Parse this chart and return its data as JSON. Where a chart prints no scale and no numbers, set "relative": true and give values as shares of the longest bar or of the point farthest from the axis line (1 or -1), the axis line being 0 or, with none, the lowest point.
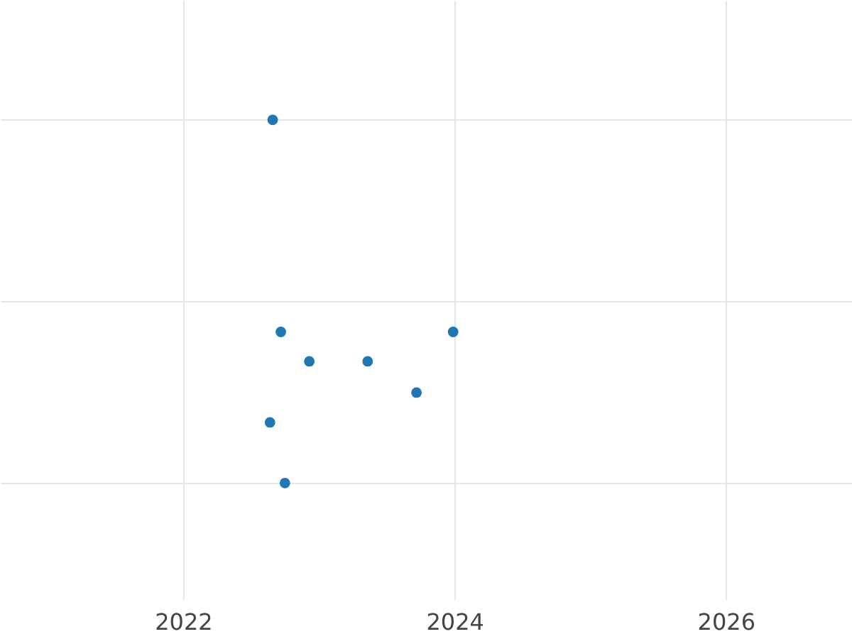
{
  "chart_data": {
    "type": "scatter",
    "relative": true,
    "color": "#1f77b4",
    "marker": "circle",
    "grid": true,
    "x": [
      2022.66,
      2022.72,
      2022.93,
      2023.36,
      2023.99,
      2023.72,
      2022.64,
      2022.75
    ],
    "values": [
      1,
      0.416,
      0.335,
      0.335,
      0.416,
      0.249,
      0.167,
      0
    ],
    "xlim": [
      2020.65,
      2026.93
    ],
    "xticks": [
      2022,
      2024,
      2026
    ]
  }
}
